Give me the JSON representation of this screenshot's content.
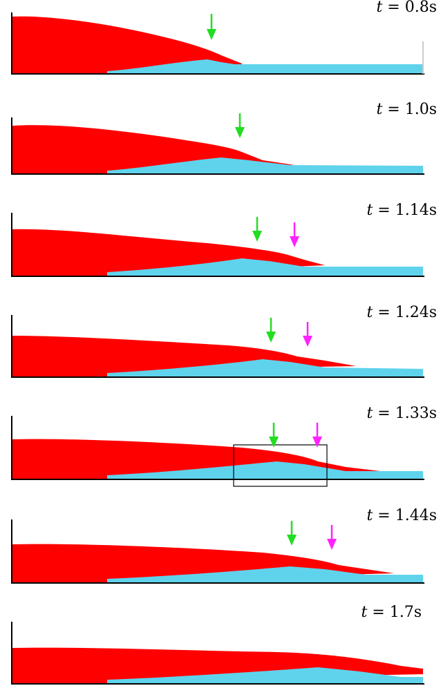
{
  "figure": {
    "colors": {
      "upper_layer": "#ff0000",
      "lower_layer": "#5fd3ec",
      "green_arrow": "#22dd22",
      "magenta_arrow": "#ff22ff",
      "axes": "#000000"
    },
    "panels": [
      {
        "time_var": "t",
        "eq": " = ",
        "time_value": "0.8s",
        "green_arrow": true,
        "magenta_arrow": false,
        "inset_box": false
      },
      {
        "time_var": "t",
        "eq": " = ",
        "time_value": "1.0s",
        "green_arrow": true,
        "magenta_arrow": false,
        "inset_box": false
      },
      {
        "time_var": "t",
        "eq": " = ",
        "time_value": "1.14s",
        "green_arrow": true,
        "magenta_arrow": true,
        "inset_box": false
      },
      {
        "time_var": "t",
        "eq": " = ",
        "time_value": "1.24s",
        "green_arrow": true,
        "magenta_arrow": true,
        "inset_box": false
      },
      {
        "time_var": "t",
        "eq": " = ",
        "time_value": "1.33s",
        "green_arrow": true,
        "magenta_arrow": true,
        "inset_box": true
      },
      {
        "time_var": "t",
        "eq": " = ",
        "time_value": "1.44s",
        "green_arrow": true,
        "magenta_arrow": true,
        "inset_box": false
      },
      {
        "time_var": "t",
        "eq": " = ",
        "time_value": "1.7s",
        "green_arrow": false,
        "magenta_arrow": false,
        "inset_box": false
      }
    ]
  }
}
